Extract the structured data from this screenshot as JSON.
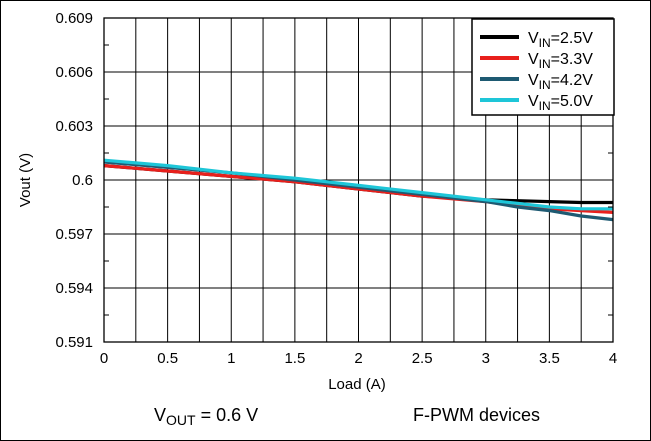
{
  "chart_data": {
    "type": "line",
    "title": "",
    "xlabel": "Load (A)",
    "ylabel": "Vout (V)",
    "xlim": [
      0,
      4
    ],
    "ylim": [
      0.591,
      0.609
    ],
    "grid": true,
    "legend_position": "top-right",
    "x_ticks": [
      0,
      0.25,
      0.5,
      0.75,
      1,
      1.25,
      1.5,
      1.75,
      2,
      2.25,
      2.5,
      2.75,
      3,
      3.25,
      3.5,
      3.75,
      4
    ],
    "x_tick_labels": [
      "0",
      "0.5",
      "1",
      "1.5",
      "2",
      "2.5",
      "3",
      "3.5",
      "4"
    ],
    "x_tick_label_values": [
      0,
      0.5,
      1,
      1.5,
      2,
      2.5,
      3,
      3.5,
      4
    ],
    "y_ticks": [
      0.591,
      0.594,
      0.597,
      0.6,
      0.603,
      0.606,
      0.609
    ],
    "y_tick_labels": [
      "0.591",
      "0.594",
      "0.597",
      "0.6",
      "0.603",
      "0.606",
      "0.609"
    ],
    "y_minor_ticks": [
      0.5925,
      0.5955,
      0.5985,
      0.6015,
      0.6045,
      0.6075
    ],
    "x": [
      0,
      0.5,
      1,
      1.5,
      2,
      2.5,
      3,
      3.25,
      3.5,
      3.75,
      4
    ],
    "series": [
      {
        "legend": {
          "pre": "V",
          "sub": "IN",
          "post": "=2.5V"
        },
        "color": "#000000",
        "values": [
          0.6008,
          0.6005,
          0.6002,
          0.5999,
          0.5995,
          0.5991,
          0.5989,
          0.59885,
          0.5988,
          0.59875,
          0.59875
        ]
      },
      {
        "legend": {
          "pre": "V",
          "sub": "IN",
          "post": "=3.3V"
        },
        "color": "#e8201c",
        "values": [
          0.6008,
          0.6005,
          0.6002,
          0.5999,
          0.5995,
          0.5991,
          0.5988,
          0.5986,
          0.5984,
          0.5983,
          0.5982
        ]
      },
      {
        "legend": {
          "pre": "V",
          "sub": "IN",
          "post": "=4.2V"
        },
        "color": "#1e5a72",
        "values": [
          0.601,
          0.6007,
          0.6004,
          0.6,
          0.5996,
          0.5992,
          0.5988,
          0.5985,
          0.5983,
          0.598,
          0.5978
        ]
      },
      {
        "legend": {
          "pre": "V",
          "sub": "IN",
          "post": "=5.0V"
        },
        "color": "#1ec6d8",
        "values": [
          0.6011,
          0.6008,
          0.6004,
          0.6001,
          0.5997,
          0.5993,
          0.5989,
          0.5987,
          0.5985,
          0.5984,
          0.5984
        ]
      }
    ],
    "annotations": [
      {
        "pre": "V",
        "sub": "OUT",
        "post": " = 0.6 V"
      },
      {
        "text": "F-PWM devices"
      }
    ]
  }
}
